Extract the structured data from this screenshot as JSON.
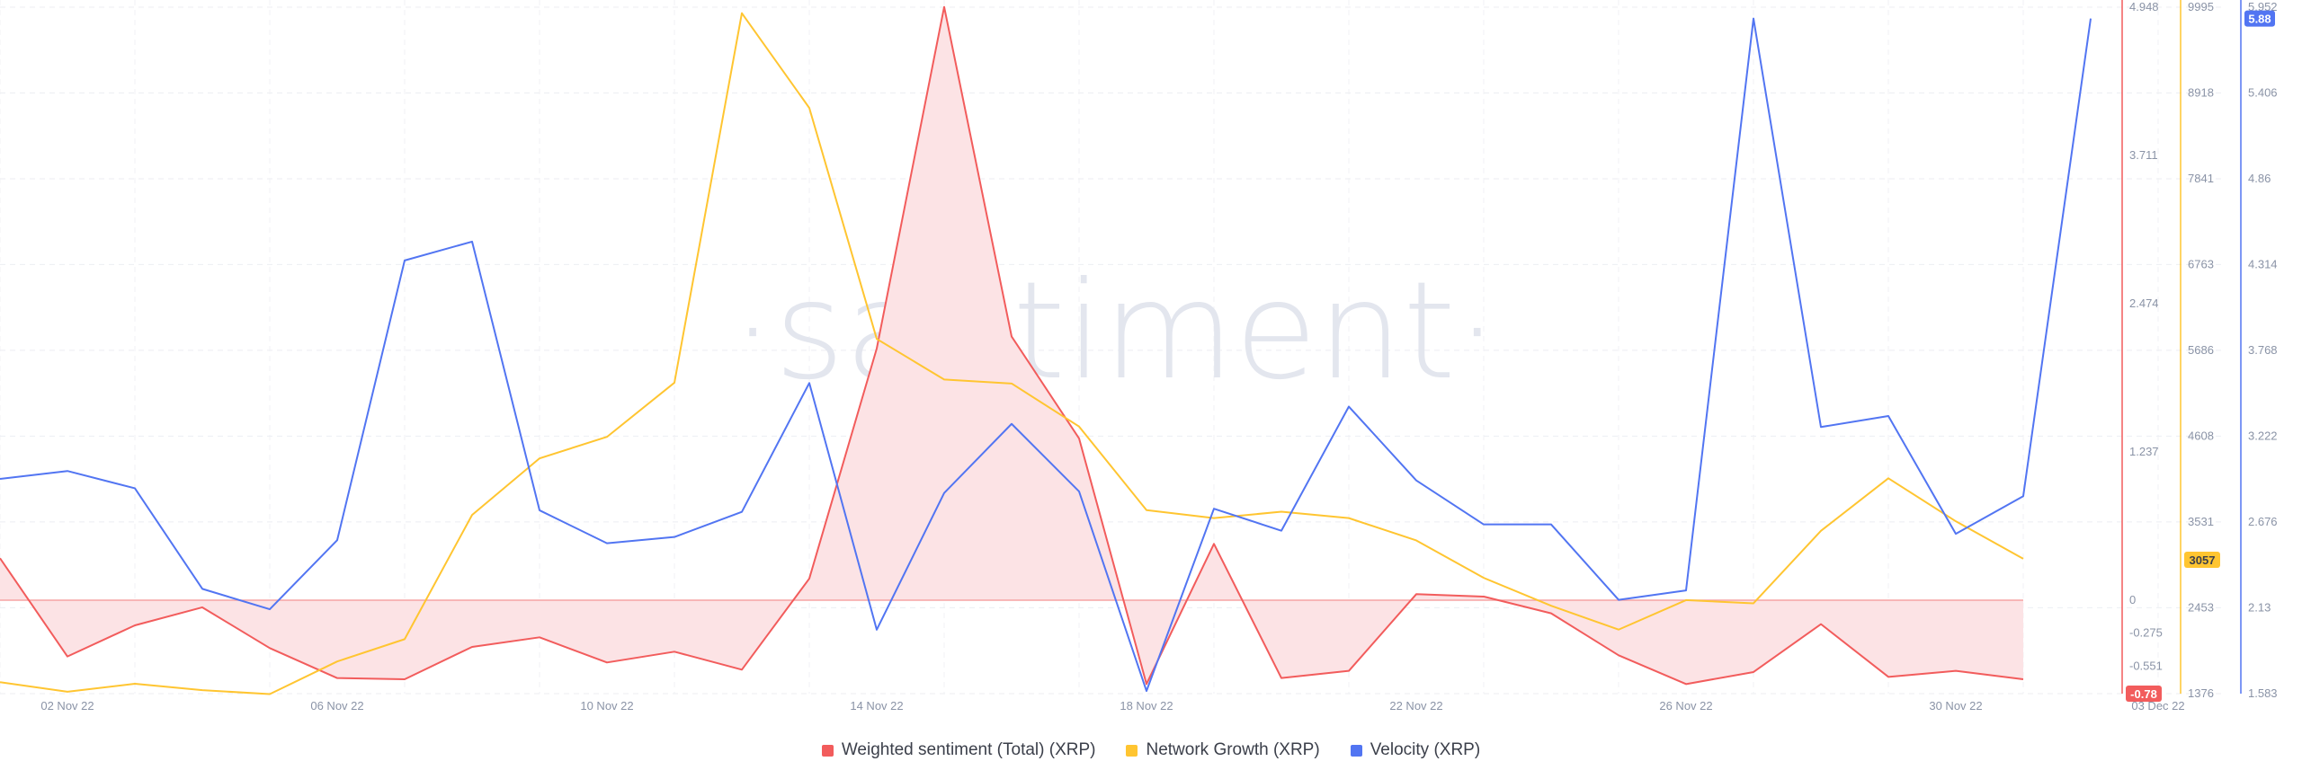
{
  "chart_data": {
    "type": "line",
    "watermark": "·santiment·",
    "x": [
      "01 Nov 22",
      "02 Nov 22",
      "03 Nov 22",
      "04 Nov 22",
      "05 Nov 22",
      "06 Nov 22",
      "07 Nov 22",
      "08 Nov 22",
      "09 Nov 22",
      "10 Nov 22",
      "11 Nov 22",
      "12 Nov 22",
      "13 Nov 22",
      "14 Nov 22",
      "15 Nov 22",
      "16 Nov 22",
      "17 Nov 22",
      "18 Nov 22",
      "19 Nov 22",
      "20 Nov 22",
      "21 Nov 22",
      "22 Nov 22",
      "23 Nov 22",
      "24 Nov 22",
      "25 Nov 22",
      "26 Nov 22",
      "27 Nov 22",
      "28 Nov 22",
      "29 Nov 22",
      "30 Nov 22",
      "01 Dec 22",
      "02 Dec 22",
      "03 Dec 22"
    ],
    "x_tick_labels": [
      "02 Nov 22",
      "06 Nov 22",
      "10 Nov 22",
      "14 Nov 22",
      "18 Nov 22",
      "22 Nov 22",
      "26 Nov 22",
      "30 Nov 22",
      "03 Dec 22"
    ],
    "series": [
      {
        "name": "Weighted sentiment (Total) (XRP)",
        "color": "#f25c5c",
        "fill": "#fce3e5",
        "axis": "red",
        "values": [
          0.35,
          -0.47,
          -0.21,
          -0.06,
          -0.4,
          -0.65,
          -0.66,
          -0.39,
          -0.31,
          -0.52,
          -0.43,
          -0.58,
          0.18,
          2.1,
          4.95,
          2.2,
          1.35,
          -0.7,
          0.47,
          -0.65,
          -0.59,
          0.05,
          0.03,
          -0.11,
          -0.46,
          -0.7,
          -0.6,
          -0.2,
          -0.64,
          -0.59,
          -0.66,
          null,
          null
        ]
      },
      {
        "name": "Network Growth (XRP)",
        "color": "#ffc531",
        "axis": "yellow",
        "values": [
          1520,
          1400,
          1500,
          1420,
          1370,
          1780,
          2060,
          3620,
          4330,
          4600,
          5280,
          9920,
          8730,
          5830,
          5320,
          5270,
          4730,
          3680,
          3580,
          3660,
          3580,
          3300,
          2830,
          2480,
          2180,
          2550,
          2510,
          3420,
          4080,
          3540,
          3070,
          null,
          null
        ]
      },
      {
        "name": "Velocity (XRP)",
        "color": "#5275f2",
        "axis": "blue",
        "values": [
          2.95,
          3.0,
          2.89,
          2.25,
          2.12,
          2.56,
          4.34,
          4.46,
          2.75,
          2.54,
          2.58,
          2.74,
          3.56,
          1.99,
          2.86,
          3.3,
          2.87,
          1.6,
          2.76,
          2.62,
          3.41,
          2.94,
          2.66,
          2.66,
          2.18,
          2.24,
          5.88,
          3.28,
          3.35,
          2.6,
          2.84,
          5.88,
          null
        ]
      }
    ],
    "axes": {
      "red": {
        "min": -0.78,
        "max": 4.948,
        "ticks": [
          "4.948",
          "3.711",
          "2.474",
          "1.237",
          "0",
          "-0.275",
          "-0.551"
        ],
        "badge": "-0.78"
      },
      "yellow": {
        "min": 1376,
        "max": 9995,
        "ticks": [
          "9995",
          "8918",
          "7841",
          "6763",
          "5686",
          "4608",
          "3531",
          "2453",
          "1376"
        ],
        "badge": "3057"
      },
      "blue": {
        "min": 1.583,
        "max": 5.952,
        "ticks": [
          "5.952",
          "5.406",
          "4.86",
          "4.314",
          "3.768",
          "3.222",
          "2.676",
          "2.13",
          "1.583"
        ],
        "badge": "5.88"
      }
    },
    "grid": true,
    "legend_position": "bottom"
  },
  "legend": [
    {
      "label": "Weighted sentiment (Total) (XRP)",
      "color": "#f25c5c"
    },
    {
      "label": "Network Growth (XRP)",
      "color": "#ffc531"
    },
    {
      "label": "Velocity (XRP)",
      "color": "#5275f2"
    }
  ]
}
